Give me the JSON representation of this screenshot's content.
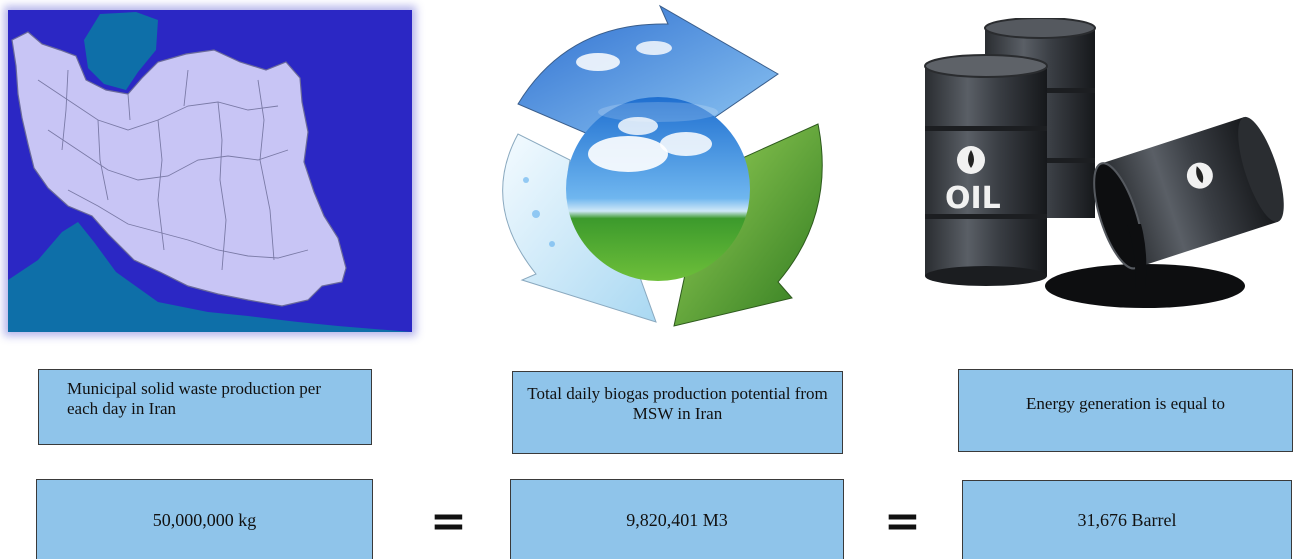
{
  "images": {
    "map_icon": "iran-map-icon",
    "recycle_icon": "recycle-globe-icon",
    "oil_icon": "oil-barrels-icon",
    "oil_label": "OIL"
  },
  "labels": {
    "waste": "Municipal solid waste production per each day in Iran",
    "biogas": "Total daily biogas production potential from MSW in Iran",
    "energy": "Energy generation is equal to"
  },
  "values": {
    "waste": "50,000,000 kg",
    "biogas": "9,820,401 M3",
    "energy": "31,676 Barrel"
  },
  "operators": {
    "first": "=",
    "second": "="
  },
  "colors": {
    "box_fill": "#8fc4ea",
    "map_background": "#2b27c4",
    "map_land": "#c8c5f5",
    "map_sea": "#0e6fa8"
  }
}
